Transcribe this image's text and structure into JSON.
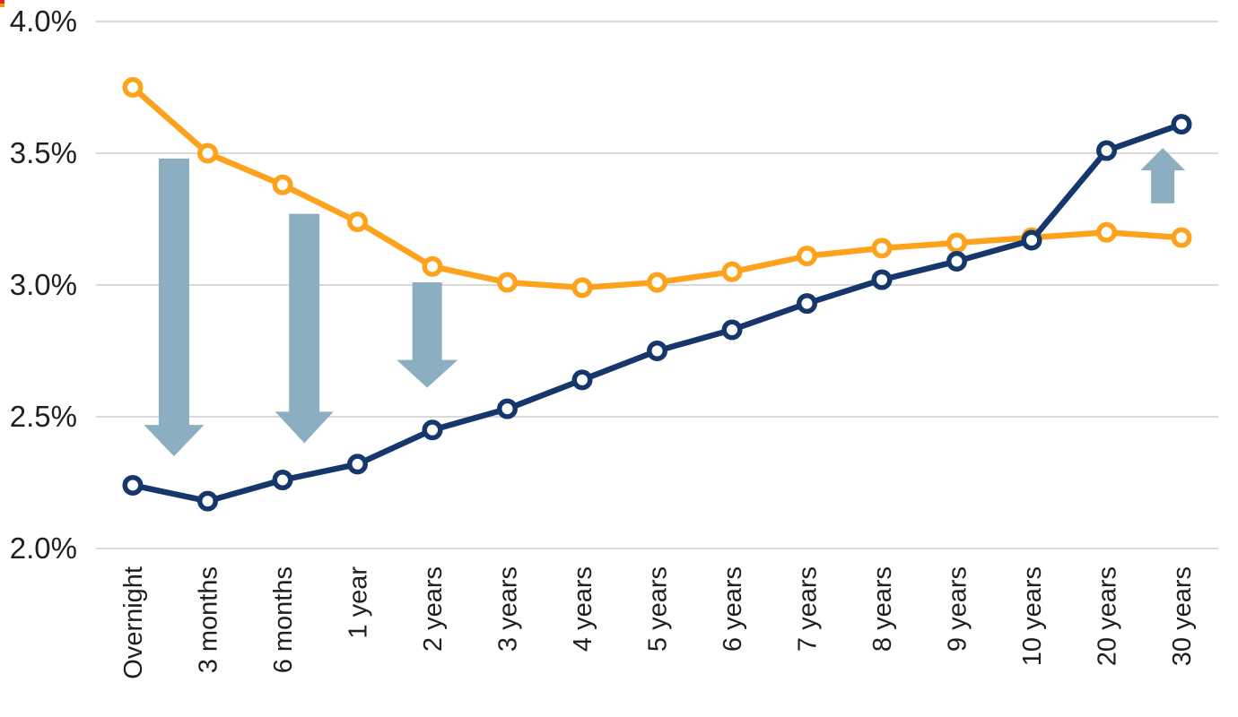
{
  "chart_data": {
    "type": "line",
    "title": "",
    "xlabel": "",
    "ylabel": "",
    "categories": [
      "Overnight",
      "3 months",
      "6 months",
      "1 year",
      "2 years",
      "3 years",
      "4 years",
      "5 years",
      "6 years",
      "7 years",
      "8 years",
      "9 years",
      "10 years",
      "20 years",
      "30 years"
    ],
    "series": [
      {
        "name": "orange-curve",
        "color": "#FCA21C",
        "values": [
          3.75,
          3.5,
          3.38,
          3.24,
          3.07,
          3.01,
          2.99,
          3.01,
          3.05,
          3.11,
          3.14,
          3.16,
          3.18,
          3.2,
          3.18
        ]
      },
      {
        "name": "navy-curve",
        "color": "#15376B",
        "values": [
          2.24,
          2.18,
          2.26,
          2.32,
          2.45,
          2.53,
          2.64,
          2.75,
          2.83,
          2.93,
          3.02,
          3.09,
          3.17,
          3.51,
          3.61
        ]
      }
    ],
    "y_ticks": [
      {
        "label": "4.0%",
        "value": 4.0
      },
      {
        "label": "3.5%",
        "value": 3.5
      },
      {
        "label": "3.0%",
        "value": 3.0
      },
      {
        "label": "2.5%",
        "value": 2.5
      },
      {
        "label": "2.0%",
        "value": 2.0
      }
    ],
    "ylim": [
      2.0,
      4.0
    ],
    "grid": true,
    "legend_position": "none",
    "annotations": {
      "arrow_color": "#8BAEC1",
      "arrows": [
        {
          "direction": "down",
          "x_index": 0.55,
          "from_value": 3.48,
          "to_value": 2.35,
          "shaft_width": 34,
          "head_width": 67,
          "head_length": 35
        },
        {
          "direction": "down",
          "x_index": 2.29,
          "from_value": 3.27,
          "to_value": 2.4,
          "shaft_width": 34,
          "head_width": 65,
          "head_length": 35
        },
        {
          "direction": "down",
          "x_index": 3.93,
          "from_value": 3.01,
          "to_value": 2.61,
          "shaft_width": 33,
          "head_width": 68,
          "head_length": 31
        },
        {
          "direction": "up",
          "x_index": 13.75,
          "from_value": 3.31,
          "to_value": 3.52,
          "shaft_width": 26,
          "head_width": 50,
          "head_length": 25
        }
      ]
    },
    "style": {
      "gridline_color": "#D9D9D9",
      "tick_label_color": "#1F1F1F",
      "background": "#FFFFFF",
      "line_width": 6.5,
      "marker_fill": "#FFFFFF"
    }
  },
  "artifact": {
    "top_color": "#E1251B",
    "bottom_color": "#F59B00"
  }
}
